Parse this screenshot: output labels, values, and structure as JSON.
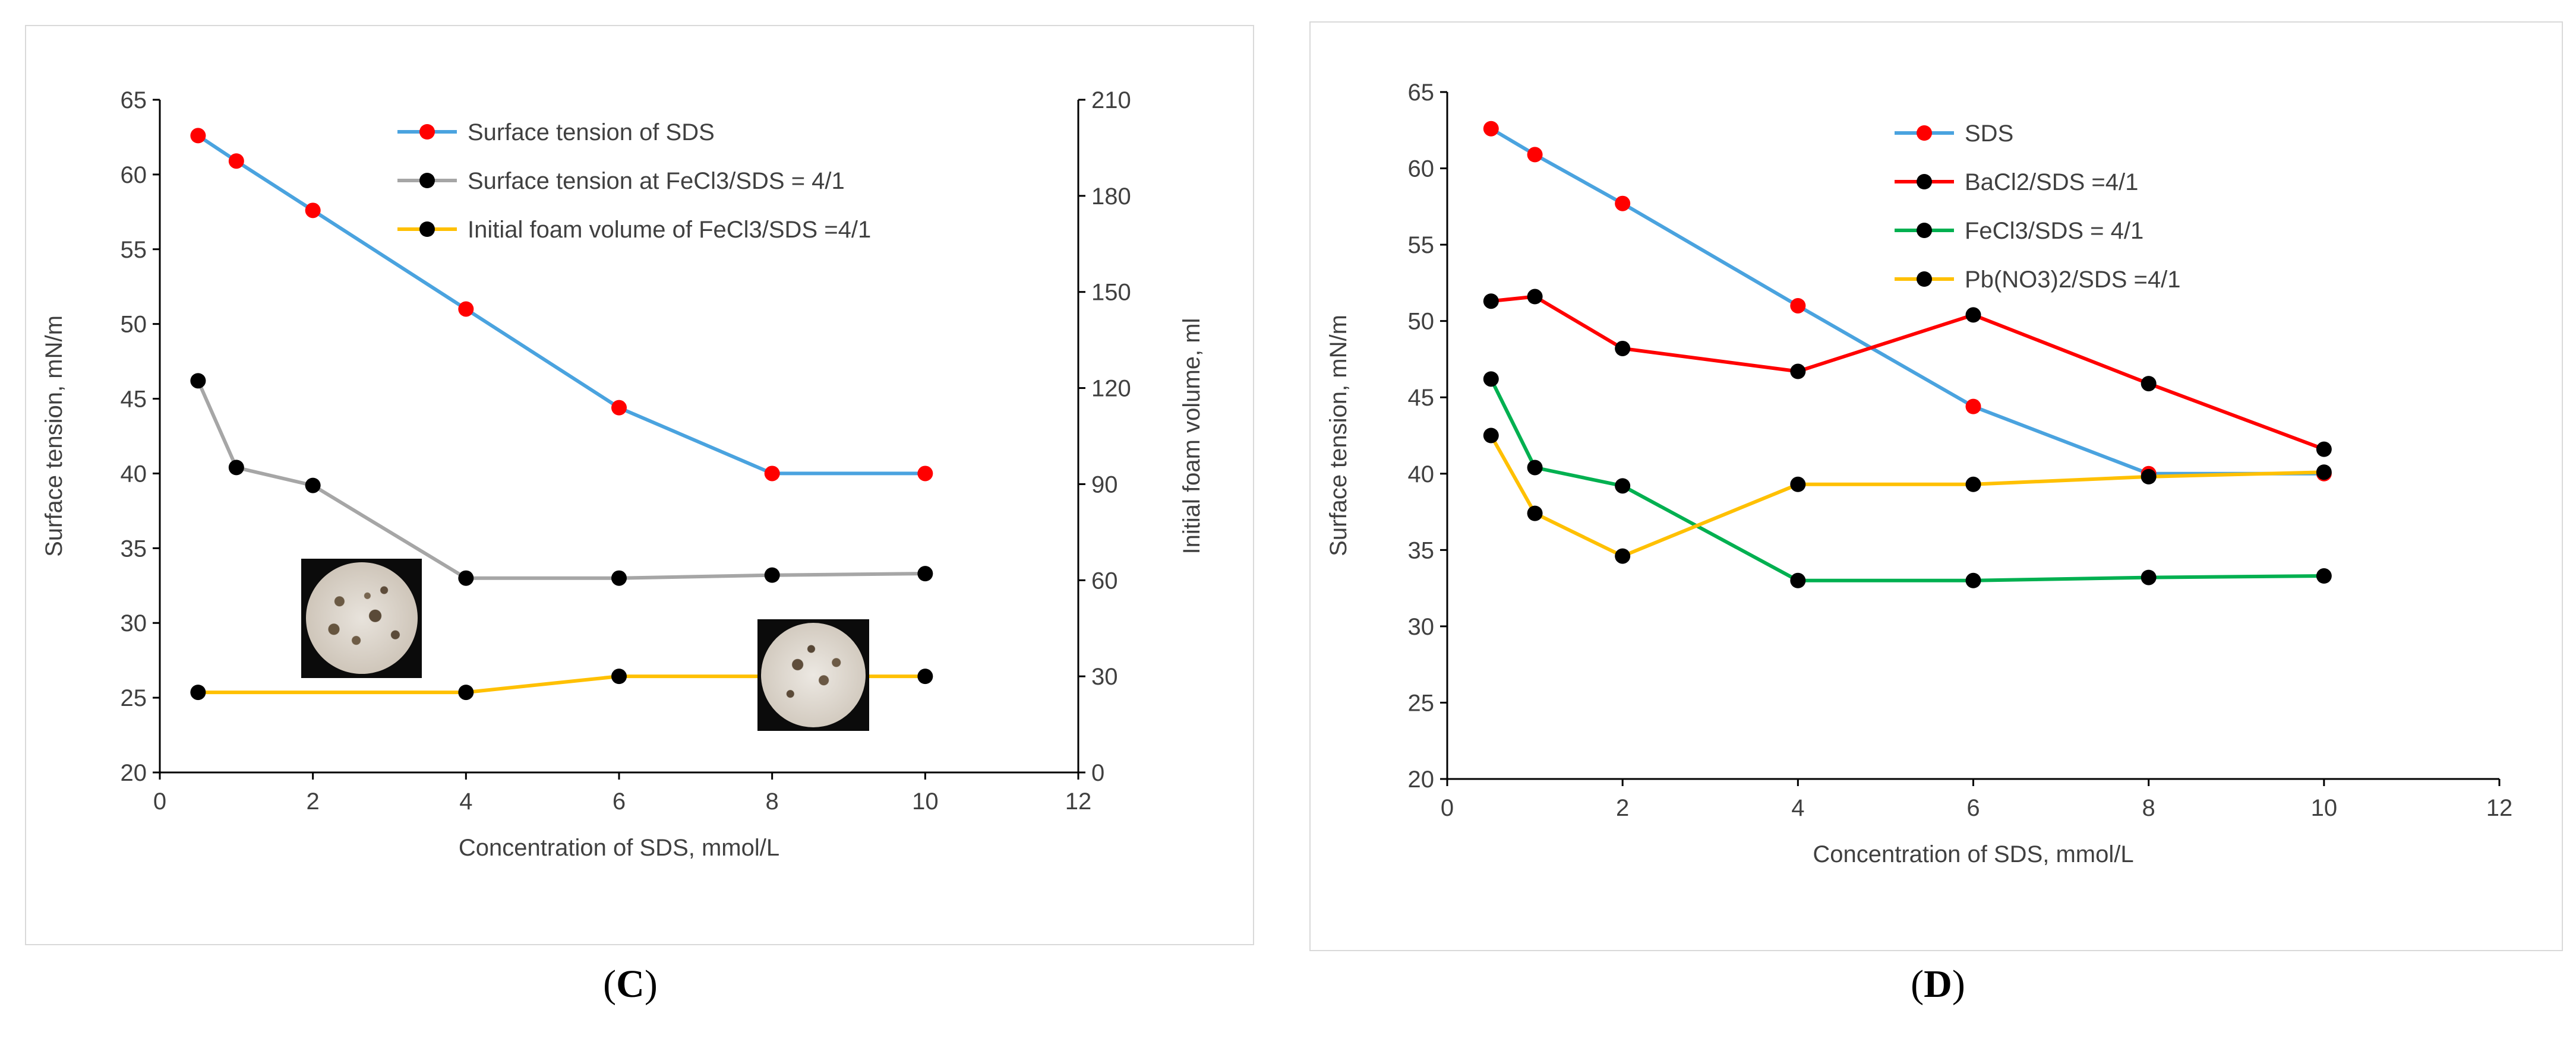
{
  "figure_captions": [
    {
      "open": "(",
      "letter": "C",
      "close": ")"
    },
    {
      "open": "(",
      "letter": "D",
      "close": ")"
    }
  ],
  "colors": {
    "sds": "#4aa3df",
    "gray": "#a6a6a6",
    "yellow": "#ffc000",
    "red": "#ff0000",
    "green": "#00b050",
    "marker_red": "#ff0000",
    "marker_black": "#000000"
  },
  "chart_data": [
    {
      "id": "C",
      "type": "line",
      "title": "",
      "xlabel": "Concentration of SDS, mmol/L",
      "ylabel": "Surface tension, mN/m",
      "y2label": "Initial foam volume, ml",
      "xlim": [
        0,
        12
      ],
      "xticks": [
        0,
        2,
        4,
        6,
        8,
        10,
        12
      ],
      "ylim": [
        20,
        65
      ],
      "yticks": [
        20,
        25,
        30,
        35,
        40,
        45,
        50,
        55,
        60,
        65
      ],
      "y2lim": [
        0,
        210
      ],
      "y2ticks": [
        0,
        30,
        60,
        90,
        120,
        150,
        180,
        210
      ],
      "legend_position": "top-center",
      "insets": [
        "foam-photo",
        "foam-photo"
      ],
      "series": [
        {
          "name": "Surface tension of SDS",
          "axis": "left",
          "color": "#4aa3df",
          "marker": "#ff0000",
          "x": [
            0.5,
            1,
            2,
            4,
            6,
            8,
            10
          ],
          "y": [
            62.6,
            60.9,
            57.6,
            51.0,
            44.4,
            40.0,
            40.0
          ]
        },
        {
          "name": "Surface tension at FeCl3/SDS = 4/1",
          "axis": "left",
          "color": "#a6a6a6",
          "marker": "#000000",
          "x": [
            0.5,
            1,
            2,
            4,
            6,
            8,
            10
          ],
          "y": [
            46.2,
            40.4,
            39.2,
            33.0,
            33.0,
            33.2,
            33.3
          ]
        },
        {
          "name": "Initial foam volume of FeCl3/SDS =4/1",
          "axis": "right",
          "color": "#ffc000",
          "marker": "#000000",
          "x": [
            0.5,
            4,
            6,
            10
          ],
          "y": [
            25,
            25,
            30,
            30
          ]
        }
      ]
    },
    {
      "id": "D",
      "type": "line",
      "title": "",
      "xlabel": "Concentration of SDS, mmol/L",
      "ylabel": "Surface tension, mN/m",
      "xlim": [
        0,
        12
      ],
      "xticks": [
        0,
        2,
        4,
        6,
        8,
        10,
        12
      ],
      "ylim": [
        20,
        65
      ],
      "yticks": [
        20,
        25,
        30,
        35,
        40,
        45,
        50,
        55,
        60,
        65
      ],
      "legend_position": "top-center",
      "series": [
        {
          "name": "SDS",
          "color": "#4aa3df",
          "marker": "#ff0000",
          "x": [
            0.5,
            1,
            2,
            4,
            6,
            8,
            10
          ],
          "y": [
            62.6,
            60.9,
            57.7,
            51.0,
            44.4,
            40.0,
            40.0
          ]
        },
        {
          "name": "BaCl2/SDS =4/1",
          "color": "#ff0000",
          "marker": "#000000",
          "x": [
            0.5,
            1,
            2,
            4,
            6,
            8,
            10
          ],
          "y": [
            51.3,
            51.6,
            48.2,
            46.7,
            50.4,
            45.9,
            41.6
          ]
        },
        {
          "name": "FeCl3/SDS = 4/1",
          "color": "#00b050",
          "marker": "#000000",
          "x": [
            0.5,
            1,
            2,
            4,
            6,
            8,
            10
          ],
          "y": [
            46.2,
            40.4,
            39.2,
            33.0,
            33.0,
            33.2,
            33.3
          ]
        },
        {
          "name": "Pb(NO3)2/SDS =4/1",
          "color": "#ffc000",
          "marker": "#000000",
          "x": [
            0.5,
            1,
            2,
            4,
            6,
            8,
            10
          ],
          "y": [
            42.5,
            37.4,
            34.6,
            39.3,
            39.3,
            39.8,
            40.1
          ]
        }
      ]
    }
  ]
}
